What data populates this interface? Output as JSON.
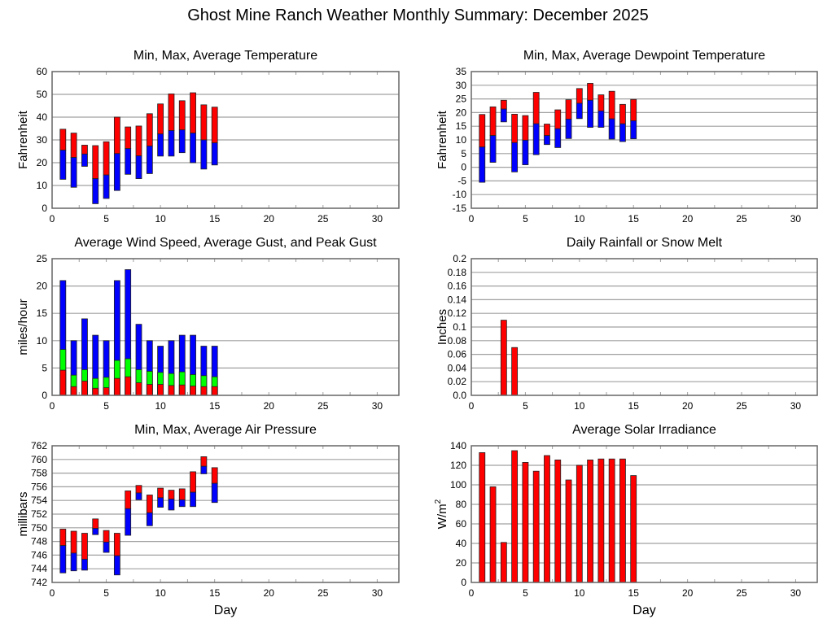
{
  "title": "Ghost Mine Ranch Weather Monthly Summary: December 2025",
  "colors": {
    "red": "#ff0000",
    "blue": "#0000ff",
    "green": "#00ff00",
    "grid": "#a0a0a0",
    "axis": "#666666"
  },
  "chart_data": [
    {
      "id": "temperature",
      "type": "bar",
      "subtype": "floating-range",
      "title": "Min, Max, Average Temperature",
      "xlabel": "",
      "ylabel": "Fahrenheit",
      "xlim": [
        0,
        32
      ],
      "xticks": [
        0,
        5,
        10,
        15,
        20,
        25,
        30
      ],
      "ylim": [
        0,
        60
      ],
      "yticks": [
        "0",
        "10",
        "20",
        "30",
        "40",
        "50",
        "60"
      ],
      "ytick_values": [
        0,
        10,
        20,
        30,
        40,
        50,
        60
      ],
      "grid": true,
      "x": [
        1,
        2,
        3,
        4,
        5,
        6,
        7,
        8,
        9,
        10,
        11,
        12,
        13,
        14,
        15
      ],
      "series": [
        {
          "name": "Max",
          "values": [
            34.7,
            33.0,
            27.7,
            27.5,
            29.2,
            40.0,
            35.7,
            36.1,
            41.5,
            45.8,
            50.2,
            47.2,
            50.7,
            45.4,
            44.4
          ]
        },
        {
          "name": "Average",
          "values": [
            25.5,
            22.3,
            23.8,
            13.0,
            14.6,
            24.0,
            26.2,
            23.0,
            27.3,
            32.6,
            34.1,
            34.4,
            33.0,
            30.0,
            28.7
          ]
        },
        {
          "name": "Min",
          "values": [
            12.7,
            9.2,
            18.4,
            2.0,
            4.3,
            7.8,
            14.9,
            13.0,
            15.2,
            22.9,
            22.9,
            24.4,
            20.0,
            17.2,
            19.0
          ]
        }
      ]
    },
    {
      "id": "dewpoint",
      "type": "bar",
      "subtype": "floating-range",
      "title": "Min, Max, Average Dewpoint Temperature",
      "xlabel": "",
      "ylabel": "Fahrenheit",
      "xlim": [
        0,
        32
      ],
      "xticks": [
        0,
        5,
        10,
        15,
        20,
        25,
        30
      ],
      "ylim": [
        -15,
        35
      ],
      "yticks": [
        "-15",
        "-10",
        "-5",
        "0",
        "5",
        "10",
        "15",
        "20",
        "25",
        "30",
        "35"
      ],
      "ytick_values": [
        -15,
        -10,
        -5,
        0,
        5,
        10,
        15,
        20,
        25,
        30,
        35
      ],
      "grid": true,
      "x": [
        1,
        2,
        3,
        4,
        5,
        6,
        7,
        8,
        9,
        10,
        11,
        12,
        13,
        14,
        15
      ],
      "series": [
        {
          "name": "Max",
          "values": [
            19.3,
            22.1,
            24.5,
            19.4,
            18.9,
            27.4,
            15.8,
            21.0,
            24.7,
            28.8,
            30.7,
            26.5,
            27.8,
            23.0,
            24.8
          ]
        },
        {
          "name": "Average",
          "values": [
            7.4,
            11.6,
            21.3,
            9.0,
            9.9,
            15.9,
            11.6,
            14.1,
            17.6,
            23.4,
            24.5,
            20.6,
            17.7,
            15.9,
            17.0
          ]
        },
        {
          "name": "Min",
          "values": [
            -5.5,
            1.8,
            16.6,
            -1.7,
            0.9,
            4.6,
            8.3,
            7.2,
            10.5,
            17.8,
            14.6,
            14.6,
            10.3,
            9.4,
            10.4
          ]
        }
      ]
    },
    {
      "id": "wind",
      "type": "bar",
      "subtype": "overlapping",
      "title": "Average Wind Speed, Average Gust, and Peak Gust",
      "xlabel": "",
      "ylabel": "miles/hour",
      "xlim": [
        0,
        32
      ],
      "xticks": [
        0,
        5,
        10,
        15,
        20,
        25,
        30
      ],
      "ylim": [
        0,
        25
      ],
      "yticks": [
        "0",
        "5",
        "10",
        "15",
        "20",
        "25"
      ],
      "ytick_values": [
        0,
        5,
        10,
        15,
        20,
        25
      ],
      "grid": true,
      "x": [
        1,
        2,
        3,
        4,
        5,
        6,
        7,
        8,
        9,
        10,
        11,
        12,
        13,
        14,
        15
      ],
      "series": [
        {
          "name": "Peak Gust",
          "color": "blue",
          "values": [
            21,
            10,
            14,
            11,
            10,
            21,
            23,
            13,
            10,
            9,
            10,
            11,
            11,
            9,
            9
          ]
        },
        {
          "name": "Average Gust",
          "color": "green",
          "values": [
            8.4,
            3.7,
            4.7,
            3.1,
            3.3,
            6.4,
            6.7,
            4.7,
            4.4,
            4.2,
            4.0,
            4.3,
            3.8,
            3.6,
            3.4
          ]
        },
        {
          "name": "Average Wind Speed",
          "color": "red",
          "values": [
            4.6,
            1.6,
            2.6,
            1.3,
            1.4,
            3.1,
            3.4,
            2.3,
            2.0,
            2.0,
            1.8,
            1.9,
            1.7,
            1.6,
            1.6
          ]
        }
      ]
    },
    {
      "id": "rainfall",
      "type": "bar",
      "title": "Daily Rainfall or Snow Melt",
      "xlabel": "",
      "ylabel": "Inches",
      "xlim": [
        0,
        32
      ],
      "xticks": [
        0,
        5,
        10,
        15,
        20,
        25,
        30
      ],
      "ylim": [
        0,
        0.2
      ],
      "yticks": [
        "0.0",
        "0.02",
        "0.04",
        "0.06",
        "0.08",
        "0.1",
        "0.12",
        "0.14",
        "0.16",
        "0.18",
        "0.2"
      ],
      "ytick_values": [
        0,
        0.02,
        0.04,
        0.06,
        0.08,
        0.1,
        0.12,
        0.14,
        0.16,
        0.18,
        0.2
      ],
      "grid": true,
      "x": [
        3,
        4
      ],
      "values": [
        0.11,
        0.07
      ]
    },
    {
      "id": "pressure",
      "type": "bar",
      "subtype": "floating-range",
      "title": "Min, Max, Average Air Pressure",
      "xlabel": "Day",
      "ylabel": "millibars",
      "xlim": [
        0,
        32
      ],
      "xticks": [
        0,
        5,
        10,
        15,
        20,
        25,
        30
      ],
      "ylim": [
        742,
        762
      ],
      "yticks": [
        "742",
        "744",
        "746",
        "748",
        "750",
        "752",
        "754",
        "756",
        "758",
        "760",
        "762"
      ],
      "ytick_values": [
        742,
        744,
        746,
        748,
        750,
        752,
        754,
        756,
        758,
        760,
        762
      ],
      "grid": true,
      "x": [
        1,
        2,
        3,
        4,
        5,
        6,
        7,
        8,
        9,
        10,
        11,
        12,
        13,
        14,
        15
      ],
      "series": [
        {
          "name": "Max",
          "values": [
            749.8,
            749.5,
            749.2,
            751.3,
            749.6,
            749.2,
            755.4,
            756.2,
            754.8,
            755.8,
            755.5,
            755.7,
            758.2,
            760.4,
            758.8
          ]
        },
        {
          "name": "Average",
          "values": [
            747.4,
            746.3,
            745.4,
            749.9,
            747.9,
            745.9,
            752.8,
            755.1,
            752.2,
            754.4,
            754.2,
            754.1,
            755.2,
            759.0,
            756.5
          ]
        },
        {
          "name": "Min",
          "values": [
            743.4,
            743.7,
            743.8,
            749.0,
            746.4,
            743.1,
            748.9,
            754.1,
            750.3,
            753.0,
            752.6,
            753.1,
            753.1,
            757.9,
            753.7
          ]
        }
      ]
    },
    {
      "id": "solar",
      "type": "bar",
      "title": "Average Solar Irradiance",
      "xlabel": "Day",
      "ylabel": "W/m",
      "ylabel_sup": "2",
      "xlim": [
        0,
        32
      ],
      "xticks": [
        0,
        5,
        10,
        15,
        20,
        25,
        30
      ],
      "ylim": [
        0,
        140
      ],
      "yticks": [
        "0",
        "20",
        "40",
        "60",
        "80",
        "100",
        "120",
        "140"
      ],
      "ytick_values": [
        0,
        20,
        40,
        60,
        80,
        100,
        120,
        140
      ],
      "grid": true,
      "x": [
        1,
        2,
        3,
        4,
        5,
        6,
        7,
        8,
        9,
        10,
        11,
        12,
        13,
        14,
        15
      ],
      "values": [
        133,
        98,
        41,
        135,
        123,
        114,
        130,
        125.5,
        105,
        120,
        125.5,
        126.5,
        126.5,
        126.5,
        109.5
      ]
    }
  ]
}
